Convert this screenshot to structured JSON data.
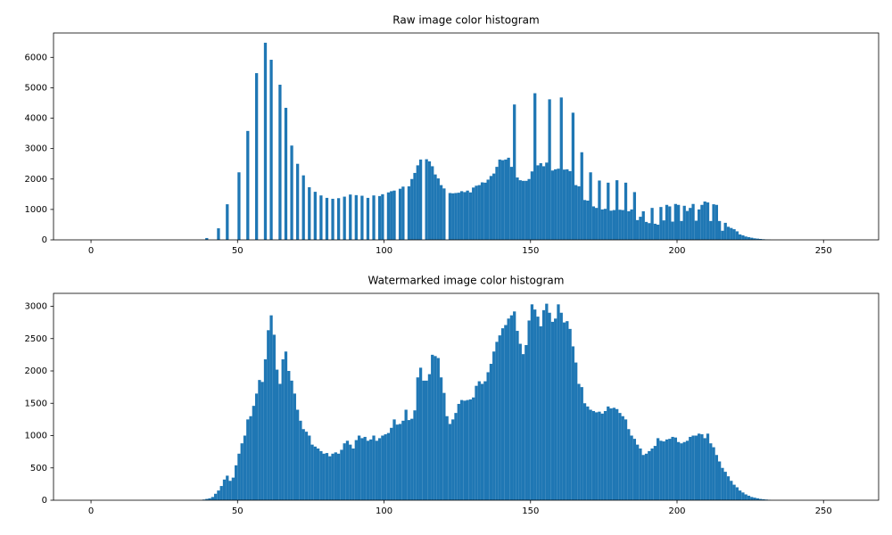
{
  "chart_data": [
    {
      "type": "histogram",
      "title": "Raw image color histogram",
      "color": "#1f77b4",
      "bins": [
        0,
        1,
        2,
        3,
        4,
        5,
        6,
        7,
        8,
        9,
        10,
        11,
        12,
        13,
        14,
        15,
        16,
        17,
        18,
        19,
        20,
        21,
        22,
        23,
        24,
        25,
        26,
        27,
        28,
        29,
        30,
        31,
        32,
        33,
        34,
        35,
        36,
        37,
        38,
        39,
        40,
        41,
        42,
        43,
        44,
        45,
        46,
        47,
        48,
        49,
        50,
        51,
        52,
        53,
        54,
        55,
        56,
        57,
        58,
        59,
        60,
        61,
        62,
        63,
        64,
        65,
        66,
        67,
        68,
        69,
        70,
        71,
        72,
        73,
        74,
        75,
        76,
        77,
        78,
        79,
        80,
        81,
        82,
        83,
        84,
        85,
        86,
        87,
        88,
        89,
        90,
        91,
        92,
        93,
        94,
        95,
        96,
        97,
        98,
        99,
        100,
        101,
        102,
        103,
        104,
        105,
        106,
        107,
        108,
        109,
        110,
        111,
        112,
        113,
        114,
        115,
        116,
        117,
        118,
        119,
        120,
        121,
        122,
        123,
        124,
        125,
        126,
        127,
        128,
        129,
        130,
        131,
        132,
        133,
        134,
        135,
        136,
        137,
        138,
        139,
        140,
        141,
        142,
        143,
        144,
        145,
        146,
        147,
        148,
        149,
        150,
        151,
        152,
        153,
        154,
        155,
        156,
        157,
        158,
        159,
        160,
        161,
        162,
        163,
        164,
        165,
        166,
        167,
        168,
        169,
        170,
        171,
        172,
        173,
        174,
        175,
        176,
        177,
        178,
        179,
        180,
        181,
        182,
        183,
        184,
        185,
        186,
        187,
        188,
        189,
        190,
        191,
        192,
        193,
        194,
        195,
        196,
        197,
        198,
        199,
        200,
        201,
        202,
        203,
        204,
        205,
        206,
        207,
        208,
        209,
        210,
        211,
        212,
        213,
        214,
        215,
        216,
        217,
        218,
        219,
        220,
        221,
        222,
        223,
        224,
        225,
        226,
        227,
        228,
        229,
        230,
        231,
        232,
        233,
        234,
        235,
        236,
        237,
        238,
        239,
        240,
        241,
        242,
        243,
        244,
        245,
        246,
        247,
        248,
        249,
        250,
        251,
        252,
        253,
        254,
        255,
        256
      ],
      "values": [
        0,
        0,
        0,
        0,
        0,
        0,
        0,
        0,
        0,
        0,
        0,
        0,
        0,
        0,
        0,
        0,
        0,
        0,
        0,
        0,
        0,
        0,
        0,
        0,
        0,
        0,
        0,
        0,
        0,
        0,
        0,
        0,
        0,
        0,
        0,
        0,
        0,
        0,
        0,
        60,
        0,
        0,
        0,
        380,
        0,
        0,
        1170,
        0,
        0,
        0,
        2220,
        0,
        0,
        3580,
        0,
        0,
        5480,
        0,
        0,
        6480,
        0,
        5920,
        0,
        0,
        5100,
        0,
        4340,
        0,
        3100,
        0,
        2500,
        0,
        2120,
        0,
        1730,
        0,
        1580,
        0,
        1460,
        0,
        1380,
        0,
        1350,
        0,
        1370,
        0,
        1420,
        0,
        1490,
        0,
        1470,
        0,
        1450,
        0,
        1380,
        0,
        1460,
        0,
        1440,
        1500,
        0,
        1560,
        1600,
        1620,
        0,
        1680,
        1750,
        0,
        1760,
        2000,
        2200,
        2450,
        2640,
        0,
        2650,
        2580,
        2420,
        2150,
        2020,
        1800,
        1690,
        0,
        1540,
        1530,
        1540,
        1550,
        1600,
        1570,
        1620,
        1560,
        1720,
        1780,
        1800,
        1890,
        1880,
        1980,
        2100,
        2180,
        2400,
        2640,
        2620,
        2640,
        2700,
        2400,
        4450,
        2050,
        1960,
        1940,
        1940,
        2000,
        2250,
        4820,
        2450,
        2520,
        2420,
        2540,
        4620,
        2280,
        2320,
        2340,
        4680,
        2310,
        2320,
        2260,
        4180,
        1800,
        1760,
        2880,
        1310,
        1290,
        2220,
        1100,
        1050,
        1950,
        1000,
        1020,
        1880,
        960,
        980,
        1960,
        990,
        980,
        1880,
        940,
        1000,
        1570,
        650,
        760,
        940,
        590,
        550,
        1050,
        530,
        500,
        1080,
        640,
        1150,
        1100,
        600,
        1180,
        1150,
        620,
        1120,
        950,
        1050,
        1180,
        630,
        1000,
        1150,
        1260,
        1230,
        620,
        1170,
        1150,
        620,
        300,
        560,
        430,
        390,
        350,
        280,
        180,
        150,
        110,
        90,
        70,
        50,
        40,
        30,
        20,
        12,
        8,
        0,
        0,
        0,
        0,
        0,
        0,
        0,
        0,
        0,
        0,
        0,
        0,
        0,
        0,
        0,
        0,
        0,
        0,
        0,
        0,
        0,
        0,
        0,
        0
      ],
      "xlim": [
        -12.8,
        268.8
      ],
      "xticks": [
        0,
        50,
        100,
        150,
        200,
        250
      ],
      "ylim": [
        0,
        6800
      ],
      "yticks": [
        0,
        1000,
        2000,
        3000,
        4000,
        5000,
        6000
      ]
    },
    {
      "type": "histogram",
      "title": "Watermarked image color histogram",
      "color": "#1f77b4",
      "bins": [
        0,
        1,
        2,
        3,
        4,
        5,
        6,
        7,
        8,
        9,
        10,
        11,
        12,
        13,
        14,
        15,
        16,
        17,
        18,
        19,
        20,
        21,
        22,
        23,
        24,
        25,
        26,
        27,
        28,
        29,
        30,
        31,
        32,
        33,
        34,
        35,
        36,
        37,
        38,
        39,
        40,
        41,
        42,
        43,
        44,
        45,
        46,
        47,
        48,
        49,
        50,
        51,
        52,
        53,
        54,
        55,
        56,
        57,
        58,
        59,
        60,
        61,
        62,
        63,
        64,
        65,
        66,
        67,
        68,
        69,
        70,
        71,
        72,
        73,
        74,
        75,
        76,
        77,
        78,
        79,
        80,
        81,
        82,
        83,
        84,
        85,
        86,
        87,
        88,
        89,
        90,
        91,
        92,
        93,
        94,
        95,
        96,
        97,
        98,
        99,
        100,
        101,
        102,
        103,
        104,
        105,
        106,
        107,
        108,
        109,
        110,
        111,
        112,
        113,
        114,
        115,
        116,
        117,
        118,
        119,
        120,
        121,
        122,
        123,
        124,
        125,
        126,
        127,
        128,
        129,
        130,
        131,
        132,
        133,
        134,
        135,
        136,
        137,
        138,
        139,
        140,
        141,
        142,
        143,
        144,
        145,
        146,
        147,
        148,
        149,
        150,
        151,
        152,
        153,
        154,
        155,
        156,
        157,
        158,
        159,
        160,
        161,
        162,
        163,
        164,
        165,
        166,
        167,
        168,
        169,
        170,
        171,
        172,
        173,
        174,
        175,
        176,
        177,
        178,
        179,
        180,
        181,
        182,
        183,
        184,
        185,
        186,
        187,
        188,
        189,
        190,
        191,
        192,
        193,
        194,
        195,
        196,
        197,
        198,
        199,
        200,
        201,
        202,
        203,
        204,
        205,
        206,
        207,
        208,
        209,
        210,
        211,
        212,
        213,
        214,
        215,
        216,
        217,
        218,
        219,
        220,
        221,
        222,
        223,
        224,
        225,
        226,
        227,
        228,
        229,
        230,
        231,
        232,
        233,
        234,
        235,
        236,
        237,
        238,
        239,
        240,
        241,
        242,
        243,
        244,
        245,
        246,
        247,
        248,
        249,
        250,
        251,
        252,
        253,
        254,
        255,
        256
      ],
      "values": [
        0,
        0,
        0,
        0,
        0,
        0,
        0,
        0,
        0,
        0,
        0,
        0,
        0,
        0,
        0,
        0,
        0,
        0,
        0,
        0,
        0,
        0,
        0,
        0,
        0,
        0,
        0,
        0,
        0,
        0,
        0,
        0,
        0,
        0,
        0,
        0,
        0,
        0,
        10,
        20,
        30,
        50,
        100,
        150,
        220,
        320,
        380,
        300,
        350,
        540,
        720,
        880,
        1000,
        1250,
        1300,
        1460,
        1650,
        1860,
        1830,
        2180,
        2630,
        2860,
        2560,
        2020,
        1800,
        2180,
        2300,
        2000,
        1850,
        1650,
        1400,
        1230,
        1100,
        1060,
        1000,
        860,
        830,
        800,
        760,
        720,
        730,
        680,
        720,
        740,
        720,
        780,
        880,
        920,
        860,
        800,
        930,
        1000,
        960,
        980,
        920,
        940,
        1000,
        920,
        960,
        1000,
        1020,
        1040,
        1120,
        1250,
        1170,
        1180,
        1230,
        1400,
        1240,
        1260,
        1390,
        1900,
        2050,
        1850,
        1850,
        1950,
        2250,
        2230,
        2200,
        1900,
        1660,
        1300,
        1180,
        1250,
        1350,
        1490,
        1550,
        1540,
        1550,
        1560,
        1590,
        1770,
        1840,
        1800,
        1840,
        1980,
        2110,
        2300,
        2450,
        2550,
        2660,
        2710,
        2810,
        2860,
        2920,
        2620,
        2420,
        2260,
        2400,
        2780,
        3030,
        2950,
        2840,
        2690,
        2940,
        3040,
        2900,
        2760,
        2810,
        3030,
        2900,
        2750,
        2770,
        2650,
        2380,
        2130,
        1800,
        1750,
        1500,
        1450,
        1400,
        1380,
        1360,
        1370,
        1340,
        1380,
        1450,
        1420,
        1430,
        1410,
        1350,
        1300,
        1250,
        1100,
        1000,
        950,
        860,
        800,
        700,
        720,
        760,
        800,
        840,
        960,
        920,
        910,
        940,
        950,
        980,
        970,
        900,
        880,
        900,
        920,
        980,
        1000,
        1000,
        1030,
        1020,
        960,
        1030,
        880,
        820,
        700,
        600,
        500,
        440,
        370,
        300,
        240,
        200,
        150,
        120,
        90,
        70,
        50,
        40,
        30,
        20,
        15,
        10,
        5,
        0,
        0,
        0,
        0,
        0,
        0,
        0,
        0,
        0,
        0,
        0,
        0,
        0,
        0,
        0,
        0,
        0,
        0,
        0,
        0,
        0,
        0,
        0,
        0
      ],
      "xlim": [
        -12.8,
        268.8
      ],
      "xticks": [
        0,
        50,
        100,
        150,
        200,
        250
      ],
      "ylim": [
        0,
        3200
      ],
      "yticks": [
        0,
        500,
        1000,
        1500,
        2000,
        2500,
        3000
      ]
    }
  ]
}
